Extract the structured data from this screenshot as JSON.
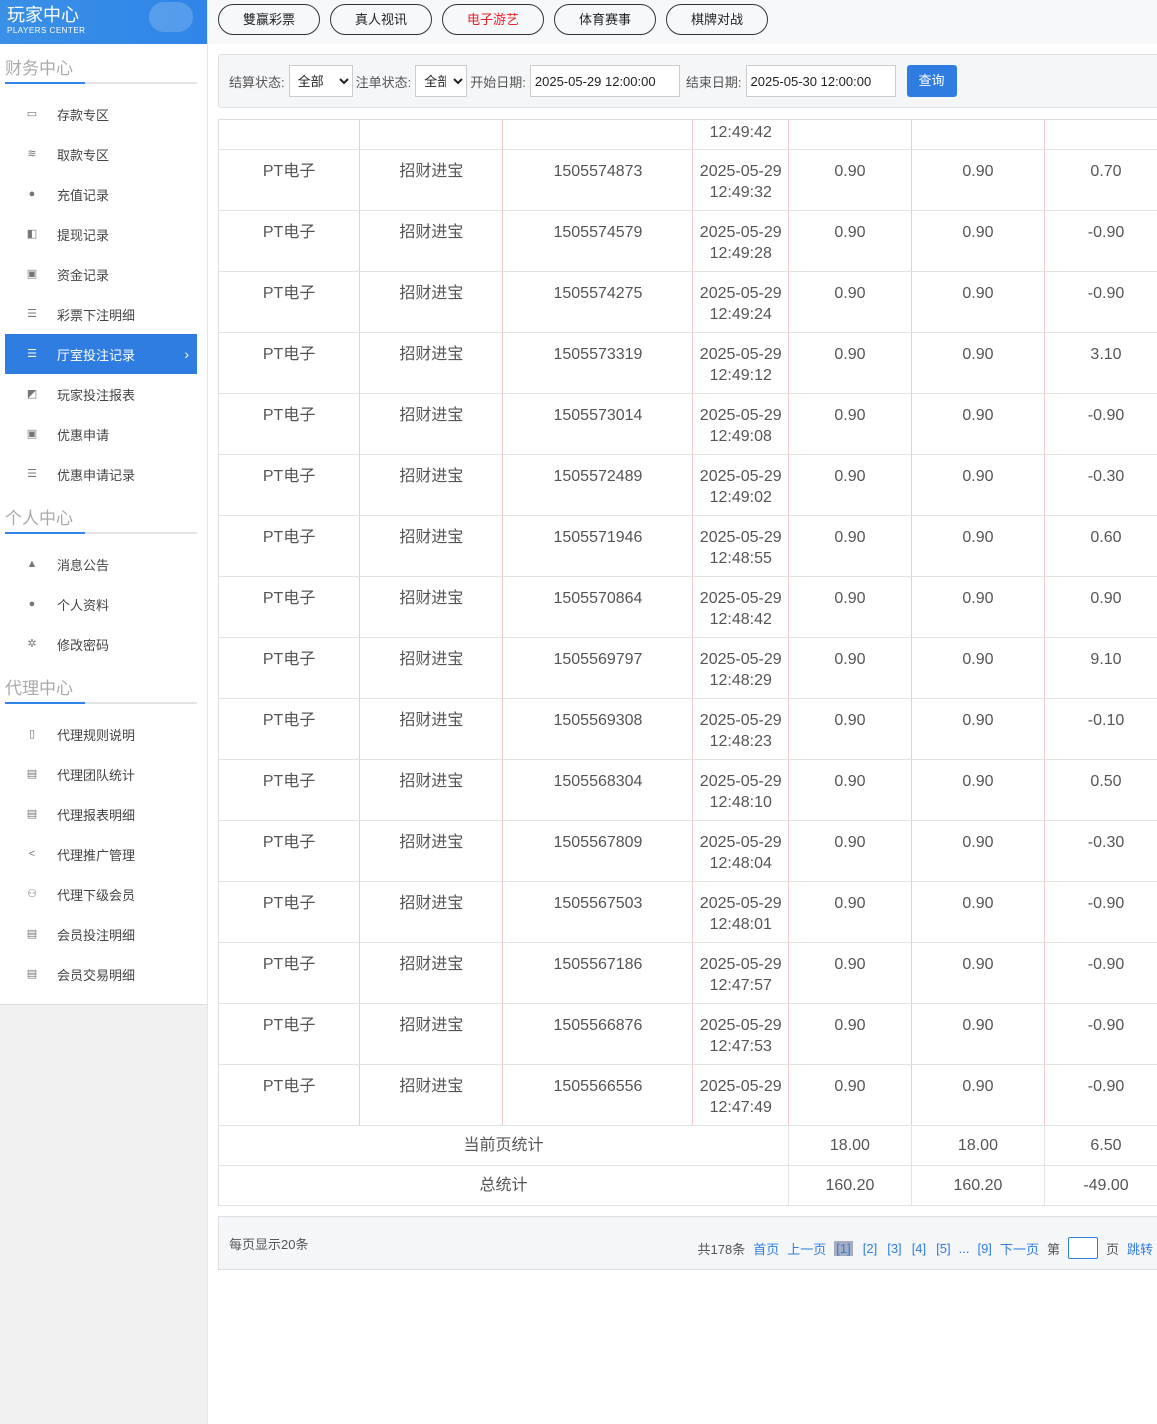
{
  "logo": {
    "title": "玩家中心",
    "subtitle": "PLAYERS CENTER"
  },
  "sidebar": {
    "sections": [
      {
        "title": "财务中心",
        "items": [
          {
            "label": "存款专区",
            "icon": "card-icon"
          },
          {
            "label": "取款专区",
            "icon": "cash-icon"
          },
          {
            "label": "充值记录",
            "icon": "moneybag-icon"
          },
          {
            "label": "提现记录",
            "icon": "wallet-icon"
          },
          {
            "label": "资金记录",
            "icon": "bank-icon"
          },
          {
            "label": "彩票下注明细",
            "icon": "list-icon"
          },
          {
            "label": "厅室投注记录",
            "icon": "list-icon",
            "active": true
          },
          {
            "label": "玩家投注报表",
            "icon": "report-icon"
          },
          {
            "label": "优惠申请",
            "icon": "gift-icon"
          },
          {
            "label": "优惠申请记录",
            "icon": "list-icon"
          }
        ]
      },
      {
        "title": "个人中心",
        "items": [
          {
            "label": "消息公告",
            "icon": "bell-icon"
          },
          {
            "label": "个人资料",
            "icon": "user-icon"
          },
          {
            "label": "修改密码",
            "icon": "gear-icon"
          }
        ]
      },
      {
        "title": "代理中心",
        "items": [
          {
            "label": "代理规则说明",
            "icon": "file-icon"
          },
          {
            "label": "代理团队统计",
            "icon": "book-icon"
          },
          {
            "label": "代理报表明细",
            "icon": "book-icon"
          },
          {
            "label": "代理推广管理",
            "icon": "share-icon"
          },
          {
            "label": "代理下级会员",
            "icon": "users-icon"
          },
          {
            "label": "会员投注明细",
            "icon": "doc-icon"
          },
          {
            "label": "会员交易明细",
            "icon": "doc-icon"
          }
        ]
      }
    ]
  },
  "tabs": [
    {
      "label": "雙赢彩票"
    },
    {
      "label": "真人视讯"
    },
    {
      "label": "电子游艺",
      "active": true
    },
    {
      "label": "体育赛事"
    },
    {
      "label": "棋牌对战"
    }
  ],
  "filter": {
    "settle_label": "结算状态:",
    "settle_value": "全部",
    "order_label": "注单状态:",
    "order_value": "全部",
    "start_label": "开始日期:",
    "start_value": "2025-05-29 12:00:00",
    "end_label": "结束日期:",
    "end_value": "2025-05-30 12:00:00",
    "query": "查询"
  },
  "table": {
    "first_row_time": "12:49:42",
    "rows": [
      [
        "PT电子",
        "招财进宝",
        "1505574873",
        "2025-05-29",
        "12:49:32",
        "0.90",
        "0.90",
        "0.70"
      ],
      [
        "PT电子",
        "招财进宝",
        "1505574579",
        "2025-05-29",
        "12:49:28",
        "0.90",
        "0.90",
        "-0.90"
      ],
      [
        "PT电子",
        "招财进宝",
        "1505574275",
        "2025-05-29",
        "12:49:24",
        "0.90",
        "0.90",
        "-0.90"
      ],
      [
        "PT电子",
        "招财进宝",
        "1505573319",
        "2025-05-29",
        "12:49:12",
        "0.90",
        "0.90",
        "3.10"
      ],
      [
        "PT电子",
        "招财进宝",
        "1505573014",
        "2025-05-29",
        "12:49:08",
        "0.90",
        "0.90",
        "-0.90"
      ],
      [
        "PT电子",
        "招财进宝",
        "1505572489",
        "2025-05-29",
        "12:49:02",
        "0.90",
        "0.90",
        "-0.30"
      ],
      [
        "PT电子",
        "招财进宝",
        "1505571946",
        "2025-05-29",
        "12:48:55",
        "0.90",
        "0.90",
        "0.60"
      ],
      [
        "PT电子",
        "招财进宝",
        "1505570864",
        "2025-05-29",
        "12:48:42",
        "0.90",
        "0.90",
        "0.90"
      ],
      [
        "PT电子",
        "招财进宝",
        "1505569797",
        "2025-05-29",
        "12:48:29",
        "0.90",
        "0.90",
        "9.10"
      ],
      [
        "PT电子",
        "招财进宝",
        "1505569308",
        "2025-05-29",
        "12:48:23",
        "0.90",
        "0.90",
        "-0.10"
      ],
      [
        "PT电子",
        "招财进宝",
        "1505568304",
        "2025-05-29",
        "12:48:10",
        "0.90",
        "0.90",
        "0.50"
      ],
      [
        "PT电子",
        "招财进宝",
        "1505567809",
        "2025-05-29",
        "12:48:04",
        "0.90",
        "0.90",
        "-0.30"
      ],
      [
        "PT电子",
        "招财进宝",
        "1505567503",
        "2025-05-29",
        "12:48:01",
        "0.90",
        "0.90",
        "-0.90"
      ],
      [
        "PT电子",
        "招财进宝",
        "1505567186",
        "2025-05-29",
        "12:47:57",
        "0.90",
        "0.90",
        "-0.90"
      ],
      [
        "PT电子",
        "招财进宝",
        "1505566876",
        "2025-05-29",
        "12:47:53",
        "0.90",
        "0.90",
        "-0.90"
      ],
      [
        "PT电子",
        "招财进宝",
        "1505566556",
        "2025-05-29",
        "12:47:49",
        "0.90",
        "0.90",
        "-0.90"
      ]
    ],
    "page_sum": {
      "label": "当前页统计",
      "values": [
        "18.00",
        "18.00",
        "6.50"
      ]
    },
    "total_sum": {
      "label": "总统计",
      "values": [
        "160.20",
        "160.20",
        "-49.00"
      ]
    }
  },
  "pager": {
    "per_page": "每页显示20条",
    "total": "共178条",
    "first": "首页",
    "prev": "上一页",
    "pages": [
      "[1]",
      "[2]",
      "[3]",
      "[4]",
      "[5]"
    ],
    "ellipsis": "...",
    "last_page": "[9]",
    "next": "下一页",
    "goto_prefix": "第",
    "goto_suffix": "页",
    "goto": "跳转"
  },
  "colors": {
    "accent": "#2f7de1",
    "active_tab": "#e8212b"
  }
}
